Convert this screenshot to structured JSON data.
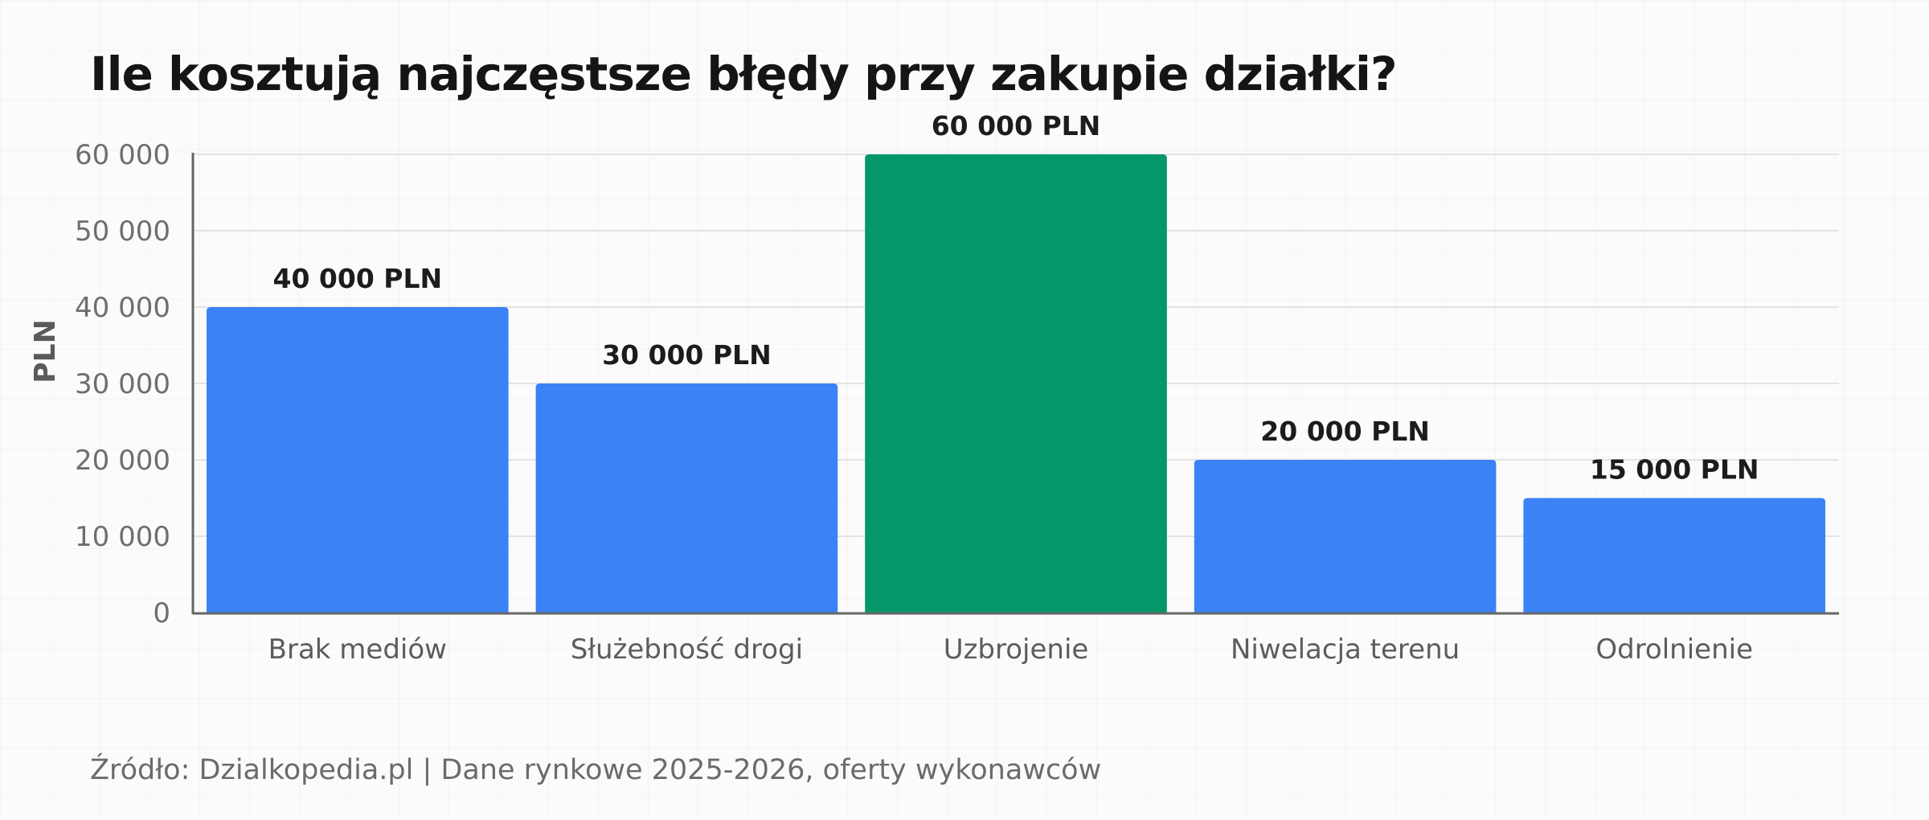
{
  "chart_data": {
    "type": "bar",
    "title": "Ile kosztują najczęstsze błędy przy zakupie działki?",
    "ylabel": "PLN",
    "xlabel": "",
    "ylim": [
      0,
      60000
    ],
    "yticks": [
      0,
      10000,
      20000,
      30000,
      40000,
      50000,
      60000
    ],
    "ytick_labels": [
      "0",
      "10 000",
      "20 000",
      "30 000",
      "40 000",
      "50 000",
      "60 000"
    ],
    "grid": true,
    "categories": [
      "Brak mediów",
      "Służebność drogi",
      "Uzbrojenie",
      "Niwelacja terenu",
      "Odrolnienie"
    ],
    "values": [
      40000,
      30000,
      60000,
      20000,
      15000
    ],
    "data_labels": [
      "40 000 PLN",
      "30 000 PLN",
      "60 000 PLN",
      "20 000 PLN",
      "15 000 PLN"
    ],
    "bar_colors": [
      "#3b82f6",
      "#3b82f6",
      "#059669",
      "#3b82f6",
      "#3b82f6"
    ]
  },
  "footer": {
    "source": "Źródło: Dzialkopedia.pl | Dane rynkowe 2025-2026, oferty wykonawców"
  }
}
